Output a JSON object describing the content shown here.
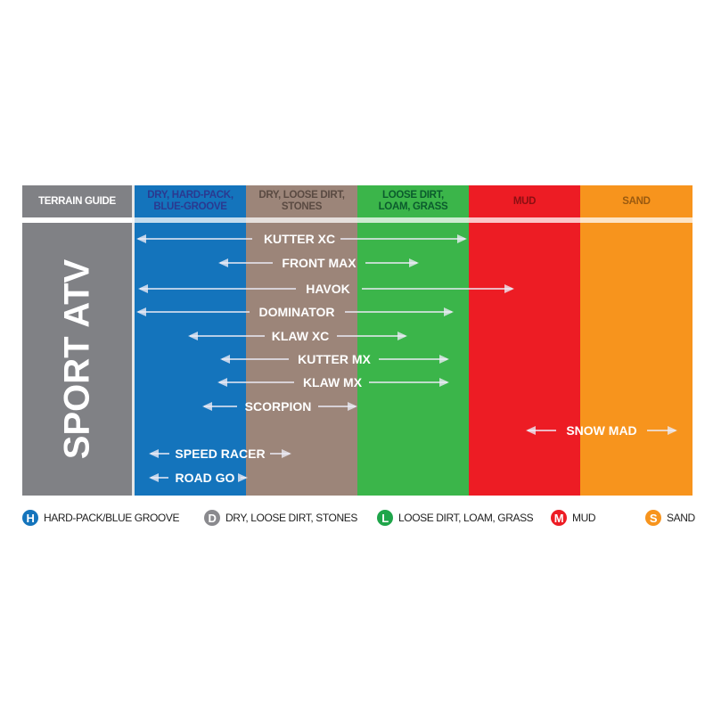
{
  "header": {
    "title": "TERRAIN GUIDE"
  },
  "category": "SPORT ATV",
  "columns": [
    {
      "label": "DRY, HARD-PACK, BLUE-GROOVE",
      "color": "#1474bc",
      "text_color": "#2b3990"
    },
    {
      "label": "DRY, LOOSE DIRT, STONES",
      "color": "#9c8579",
      "text_color": "#5a4a42"
    },
    {
      "label": "LOOSE DIRT, LOAM, GRASS",
      "color": "#3bb54a",
      "text_color": "#0b5b2d"
    },
    {
      "label": "MUD",
      "color": "#ed1c24",
      "text_color": "#8b0f12"
    },
    {
      "label": "SAND",
      "color": "#f7941d",
      "text_color": "#9a5a10"
    }
  ],
  "tires": [
    {
      "name": "KUTTER XC"
    },
    {
      "name": "FRONT MAX"
    },
    {
      "name": "HAVOK"
    },
    {
      "name": "DOMINATOR"
    },
    {
      "name": "KLAW XC"
    },
    {
      "name": "KUTTER MX"
    },
    {
      "name": "KLAW MX"
    },
    {
      "name": "SCORPION"
    },
    {
      "name": "SNOW MAD"
    },
    {
      "name": "SPEED RACER"
    },
    {
      "name": "ROAD GO"
    }
  ],
  "legend": [
    {
      "letter": "H",
      "label": "HARD-PACK/BLUE GROOVE",
      "color": "#1474bc"
    },
    {
      "letter": "D",
      "label": "DRY, LOOSE DIRT, STONES",
      "color": "#8a8a8e"
    },
    {
      "letter": "L",
      "label": "LOOSE DIRT, LOAM, GRASS",
      "color": "#1fa54a"
    },
    {
      "letter": "M",
      "label": "MUD",
      "color": "#ed1c24"
    },
    {
      "letter": "S",
      "label": "SAND",
      "color": "#f7941d"
    }
  ],
  "colors": {
    "label_column": "#808185",
    "arrow": "#ebebf5"
  }
}
